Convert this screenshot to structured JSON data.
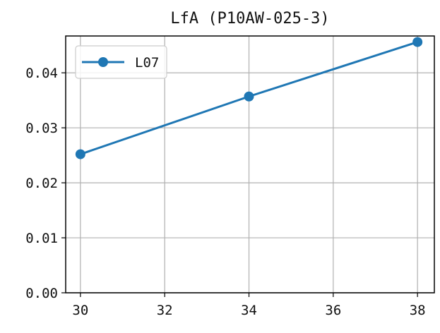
{
  "chart_data": {
    "type": "line",
    "title": "LfA (P10AW-025-3)",
    "xlabel": "",
    "ylabel": "",
    "x": [
      30,
      34,
      38
    ],
    "series": [
      {
        "name": "L07",
        "values": [
          0.0252,
          0.0357,
          0.0456
        ],
        "color": "#1f77b4",
        "marker": "circle"
      }
    ],
    "xlim": [
      29.65,
      38.4
    ],
    "ylim": [
      0.0,
      0.0467
    ],
    "xticks": [
      30,
      32,
      34,
      36,
      38
    ],
    "xtick_labels": [
      "30",
      "32",
      "34",
      "36",
      "38"
    ],
    "yticks": [
      0.0,
      0.01,
      0.02,
      0.03,
      0.04
    ],
    "ytick_labels": [
      "0.00",
      "0.01",
      "0.02",
      "0.03",
      "0.04"
    ],
    "grid": true,
    "legend_position": "top-left"
  }
}
